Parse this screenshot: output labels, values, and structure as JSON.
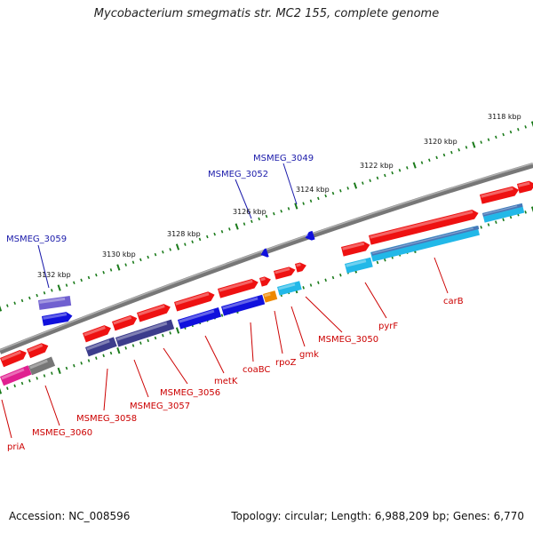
{
  "title": "Mycobacterium smegmatis str. MC2 155, complete genome",
  "accession": "Accession: NC_008596",
  "meta": "Topology: circular; Length: 6,988,209 bp; Genes: 6,770",
  "ticks": [
    {
      "label": "3118 kbp"
    },
    {
      "label": "3120 kbp"
    },
    {
      "label": "3122 kbp"
    },
    {
      "label": "3124 kbp"
    },
    {
      "label": "3126 kbp"
    },
    {
      "label": "3128 kbp"
    },
    {
      "label": "3130 kbp"
    },
    {
      "label": "3132 kbp"
    }
  ],
  "gene_labels_top": [
    {
      "name": "MSMEG_3049"
    },
    {
      "name": "MSMEG_3052"
    },
    {
      "name": "MSMEG_3059"
    }
  ],
  "gene_labels_bottom": [
    {
      "name": "carB"
    },
    {
      "name": "pyrF"
    },
    {
      "name": "MSMEG_3050"
    },
    {
      "name": "gmk"
    },
    {
      "name": "rpoZ"
    },
    {
      "name": "coaBC"
    },
    {
      "name": "metK"
    },
    {
      "name": "MSMEG_3056"
    },
    {
      "name": "MSMEG_3057"
    },
    {
      "name": "MSMEG_3058"
    },
    {
      "name": "MSMEG_3060"
    },
    {
      "name": "priA"
    }
  ],
  "colors": {
    "backbone": "#777777",
    "red": "#ee1111",
    "blue": "#1010dd",
    "navy": "#3c3c8c",
    "purple": "#7060d0",
    "cyan": "#22b8e8",
    "steel": "#4878b8",
    "orange": "#ee8800",
    "gray": "#777777",
    "magenta": "#e02090",
    "tick_green": "#1a7a1a",
    "label_red": "#cc0000",
    "label_blue": "#1a1aaa"
  }
}
